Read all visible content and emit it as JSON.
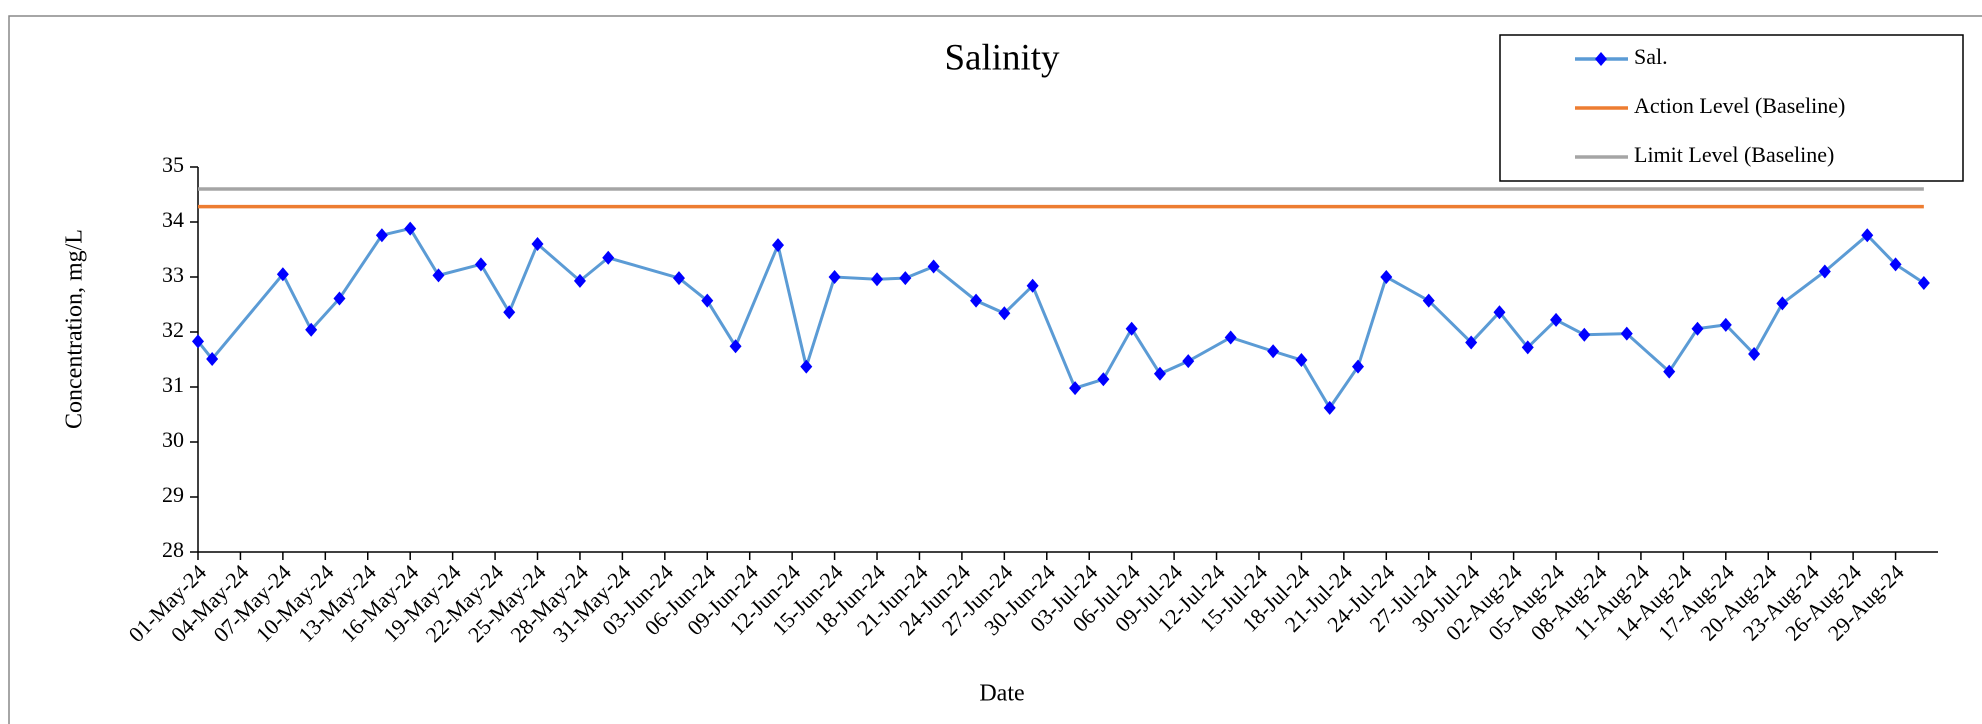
{
  "chart_data": {
    "type": "line",
    "title": "Salinity",
    "x_label": "Date",
    "y_label": "Concentration, mg/L",
    "xlim": [
      "2024-05-01",
      "2024-09-01"
    ],
    "xticks": [
      {
        "value": "2024-05-01",
        "label": "01-May-24"
      },
      {
        "value": "2024-05-04",
        "label": "04-May-24"
      },
      {
        "value": "2024-05-07",
        "label": "07-May-24"
      },
      {
        "value": "2024-05-10",
        "label": "10-May-24"
      },
      {
        "value": "2024-05-13",
        "label": "13-May-24"
      },
      {
        "value": "2024-05-16",
        "label": "16-May-24"
      },
      {
        "value": "2024-05-19",
        "label": "19-May-24"
      },
      {
        "value": "2024-05-22",
        "label": "22-May-24"
      },
      {
        "value": "2024-05-25",
        "label": "25-May-24"
      },
      {
        "value": "2024-05-28",
        "label": "28-May-24"
      },
      {
        "value": "2024-05-31",
        "label": "31-May-24"
      },
      {
        "value": "2024-06-03",
        "label": "03-Jun-24"
      },
      {
        "value": "2024-06-06",
        "label": "06-Jun-24"
      },
      {
        "value": "2024-06-09",
        "label": "09-Jun-24"
      },
      {
        "value": "2024-06-12",
        "label": "12-Jun-24"
      },
      {
        "value": "2024-06-15",
        "label": "15-Jun-24"
      },
      {
        "value": "2024-06-18",
        "label": "18-Jun-24"
      },
      {
        "value": "2024-06-21",
        "label": "21-Jun-24"
      },
      {
        "value": "2024-06-24",
        "label": "24-Jun-24"
      },
      {
        "value": "2024-06-27",
        "label": "27-Jun-24"
      },
      {
        "value": "2024-06-30",
        "label": "30-Jun-24"
      },
      {
        "value": "2024-07-03",
        "label": "03-Jul-24"
      },
      {
        "value": "2024-07-06",
        "label": "06-Jul-24"
      },
      {
        "value": "2024-07-09",
        "label": "09-Jul-24"
      },
      {
        "value": "2024-07-12",
        "label": "12-Jul-24"
      },
      {
        "value": "2024-07-15",
        "label": "15-Jul-24"
      },
      {
        "value": "2024-07-18",
        "label": "18-Jul-24"
      },
      {
        "value": "2024-07-21",
        "label": "21-Jul-24"
      },
      {
        "value": "2024-07-24",
        "label": "24-Jul-24"
      },
      {
        "value": "2024-07-27",
        "label": "27-Jul-24"
      },
      {
        "value": "2024-07-30",
        "label": "30-Jul-24"
      },
      {
        "value": "2024-08-02",
        "label": "02-Aug-24"
      },
      {
        "value": "2024-08-05",
        "label": "05-Aug-24"
      },
      {
        "value": "2024-08-08",
        "label": "08-Aug-24"
      },
      {
        "value": "2024-08-11",
        "label": "11-Aug-24"
      },
      {
        "value": "2024-08-14",
        "label": "14-Aug-24"
      },
      {
        "value": "2024-08-17",
        "label": "17-Aug-24"
      },
      {
        "value": "2024-08-20",
        "label": "20-Aug-24"
      },
      {
        "value": "2024-08-23",
        "label": "23-Aug-24"
      },
      {
        "value": "2024-08-26",
        "label": "26-Aug-24"
      },
      {
        "value": "2024-08-29",
        "label": "29-Aug-24"
      }
    ],
    "ylim": [
      28,
      35
    ],
    "yticks": [
      28,
      29,
      30,
      31,
      32,
      33,
      34,
      35
    ],
    "series": [
      {
        "name": "Sal.",
        "color": "#5b9bd5",
        "marker_color": "#0000ff",
        "x": [
          "2024-05-01",
          "2024-05-02",
          "2024-05-07",
          "2024-05-09",
          "2024-05-11",
          "2024-05-14",
          "2024-05-16",
          "2024-05-18",
          "2024-05-21",
          "2024-05-23",
          "2024-05-25",
          "2024-05-28",
          "2024-05-30",
          "2024-06-04",
          "2024-06-06",
          "2024-06-08",
          "2024-06-11",
          "2024-06-13",
          "2024-06-15",
          "2024-06-18",
          "2024-06-20",
          "2024-06-22",
          "2024-06-25",
          "2024-06-27",
          "2024-06-29",
          "2024-07-02",
          "2024-07-04",
          "2024-07-06",
          "2024-07-08",
          "2024-07-10",
          "2024-07-13",
          "2024-07-16",
          "2024-07-18",
          "2024-07-20",
          "2024-07-22",
          "2024-07-24",
          "2024-07-27",
          "2024-07-30",
          "2024-08-01",
          "2024-08-03",
          "2024-08-05",
          "2024-08-07",
          "2024-08-10",
          "2024-08-13",
          "2024-08-15",
          "2024-08-17",
          "2024-08-19",
          "2024-08-21",
          "2024-08-24",
          "2024-08-27",
          "2024-08-29",
          "2024-08-31"
        ],
        "values": [
          31.83,
          31.51,
          33.05,
          32.04,
          32.61,
          33.76,
          33.88,
          33.03,
          33.23,
          32.36,
          33.6,
          32.93,
          33.35,
          32.98,
          32.57,
          31.74,
          33.58,
          31.37,
          33.0,
          32.96,
          32.98,
          33.19,
          32.57,
          32.34,
          32.84,
          30.98,
          31.14,
          32.06,
          31.24,
          31.47,
          31.9,
          31.65,
          31.49,
          30.62,
          31.37,
          33.0,
          32.57,
          31.81,
          32.36,
          31.72,
          32.22,
          31.95,
          31.97,
          31.28,
          32.06,
          32.13,
          31.6,
          32.52,
          33.1,
          33.76,
          33.23,
          32.89
        ]
      },
      {
        "name": "Action Level (Baseline)",
        "color": "#ed7d31",
        "x": [
          "2024-05-01",
          "2024-08-31"
        ],
        "values": [
          34.28,
          34.28
        ]
      },
      {
        "name": "Limit Level (Baseline)",
        "color": "#a5a5a5",
        "x": [
          "2024-05-01",
          "2024-08-31"
        ],
        "values": [
          34.6,
          34.6
        ]
      }
    ]
  }
}
